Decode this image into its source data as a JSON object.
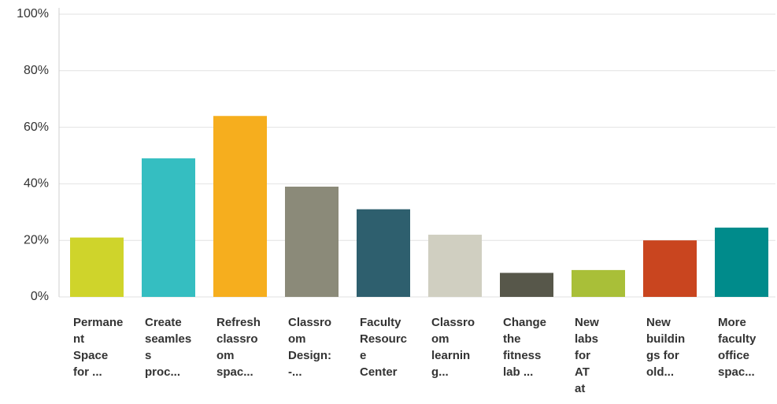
{
  "chart_data": {
    "type": "bar",
    "categories": [
      [
        "Permane",
        "nt",
        "Space",
        "for ..."
      ],
      [
        "Create",
        "seamles",
        "s",
        "proc..."
      ],
      [
        "Refresh",
        "classro",
        "om",
        "spac..."
      ],
      [
        "Classro",
        "om",
        "Design:",
        "-..."
      ],
      [
        "Faculty",
        "Resourc",
        "e",
        "Center"
      ],
      [
        "Classro",
        "om",
        "learnin",
        "g..."
      ],
      [
        "Change",
        "the",
        "fitness",
        "lab ..."
      ],
      [
        "New",
        "labs",
        "for",
        "AT",
        "at"
      ],
      [
        "New",
        "buildin",
        "gs for",
        "old..."
      ],
      [
        "More",
        "faculty",
        "office",
        "spac..."
      ]
    ],
    "series": [
      {
        "colors": [
          "#cfd42b",
          "#35bec1",
          "#f6ae1e",
          "#8b8a79",
          "#2e5f6e",
          "#d0cfc1",
          "#57574a",
          "#a9bf38",
          "#c9451f",
          "#008b8b"
        ],
        "values": [
          21,
          49,
          64,
          39,
          31,
          22,
          8.5,
          9.5,
          20,
          24.5
        ]
      }
    ],
    "ylim": [
      0,
      100
    ],
    "yticks": [
      {
        "value": 0,
        "label": "0%"
      },
      {
        "value": 20,
        "label": "20%"
      },
      {
        "value": 40,
        "label": "40%"
      },
      {
        "value": 60,
        "label": "60%"
      },
      {
        "value": 80,
        "label": "80%"
      },
      {
        "value": 100,
        "label": "100%"
      }
    ],
    "grid": true
  }
}
